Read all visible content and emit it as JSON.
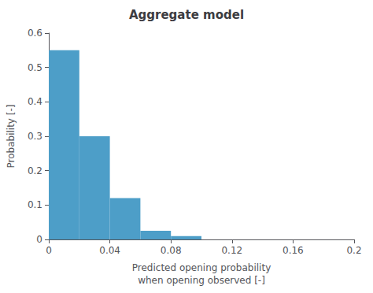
{
  "chart_data": {
    "type": "histogram",
    "title": "Aggregate model",
    "xlabel": "Predicted opening probability\nwhen opening observed [-]",
    "ylabel": "Probability [-]",
    "bins": [
      0.0,
      0.02,
      0.04,
      0.06,
      0.08,
      0.1
    ],
    "values": [
      0.55,
      0.3,
      0.12,
      0.025,
      0.01
    ],
    "color": "#4D9EC8",
    "xlim": [
      0.0,
      0.2
    ],
    "ylim": [
      0.0,
      0.6
    ],
    "xticks": [
      0.0,
      0.04,
      0.08,
      0.12,
      0.16,
      0.2
    ],
    "yticks": [
      0.0,
      0.1,
      0.2,
      0.3,
      0.4,
      0.5,
      0.6
    ],
    "grid": false
  }
}
